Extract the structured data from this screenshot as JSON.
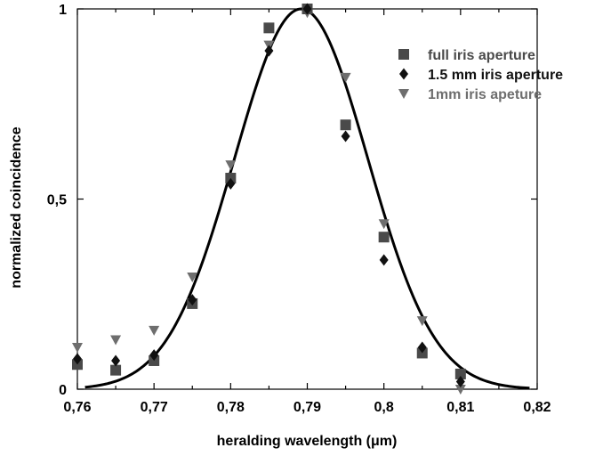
{
  "chart_data": {
    "type": "scatter",
    "title": "",
    "xlabel": "heralding wavelength (μm)",
    "ylabel": "normalized coincidence",
    "xlim": [
      0.76,
      0.82
    ],
    "ylim": [
      0,
      1
    ],
    "x_ticks": [
      {
        "value": 0.76,
        "label": "0,76"
      },
      {
        "value": 0.765,
        "label": ""
      },
      {
        "value": 0.77,
        "label": "0,77"
      },
      {
        "value": 0.775,
        "label": ""
      },
      {
        "value": 0.78,
        "label": "0,78"
      },
      {
        "value": 0.785,
        "label": ""
      },
      {
        "value": 0.79,
        "label": "0,79"
      },
      {
        "value": 0.795,
        "label": ""
      },
      {
        "value": 0.8,
        "label": "0,8"
      },
      {
        "value": 0.805,
        "label": ""
      },
      {
        "value": 0.81,
        "label": "0,81"
      },
      {
        "value": 0.815,
        "label": ""
      },
      {
        "value": 0.82,
        "label": "0,82"
      }
    ],
    "y_ticks": [
      {
        "value": 0,
        "label": "0"
      },
      {
        "value": 0.5,
        "label": "0,5"
      },
      {
        "value": 1,
        "label": "1"
      }
    ],
    "grid": false,
    "legend_position": "top-right",
    "series": [
      {
        "name": "full iris aperture",
        "marker": "square",
        "color": "#4a4a4a",
        "x": [
          0.76,
          0.765,
          0.77,
          0.775,
          0.78,
          0.785,
          0.79,
          0.795,
          0.8,
          0.805,
          0.81
        ],
        "y": [
          0.065,
          0.05,
          0.075,
          0.225,
          0.555,
          0.95,
          1.0,
          0.695,
          0.4,
          0.095,
          0.04
        ]
      },
      {
        "name": "1.5 mm iris aperture",
        "marker": "diamond",
        "color": "#111111",
        "x": [
          0.76,
          0.765,
          0.77,
          0.775,
          0.78,
          0.785,
          0.79,
          0.795,
          0.8,
          0.805,
          0.81
        ],
        "y": [
          0.08,
          0.075,
          0.09,
          0.235,
          0.54,
          0.89,
          1.0,
          0.665,
          0.34,
          0.11,
          0.02
        ]
      },
      {
        "name": "1mm iris apeture",
        "marker": "triangle-down",
        "color": "#6e6e6e",
        "x": [
          0.76,
          0.765,
          0.77,
          0.775,
          0.78,
          0.785,
          0.79,
          0.795,
          0.8,
          0.805,
          0.81
        ],
        "y": [
          0.11,
          0.13,
          0.155,
          0.295,
          0.59,
          0.905,
          0.99,
          0.82,
          0.435,
          0.18,
          0.0
        ]
      }
    ],
    "fit_curve": {
      "type": "gaussian",
      "center": 0.7892,
      "sigma": 0.0087,
      "amplitude": 1.0,
      "x_range": [
        0.761,
        0.819
      ],
      "color": "#000000"
    }
  }
}
